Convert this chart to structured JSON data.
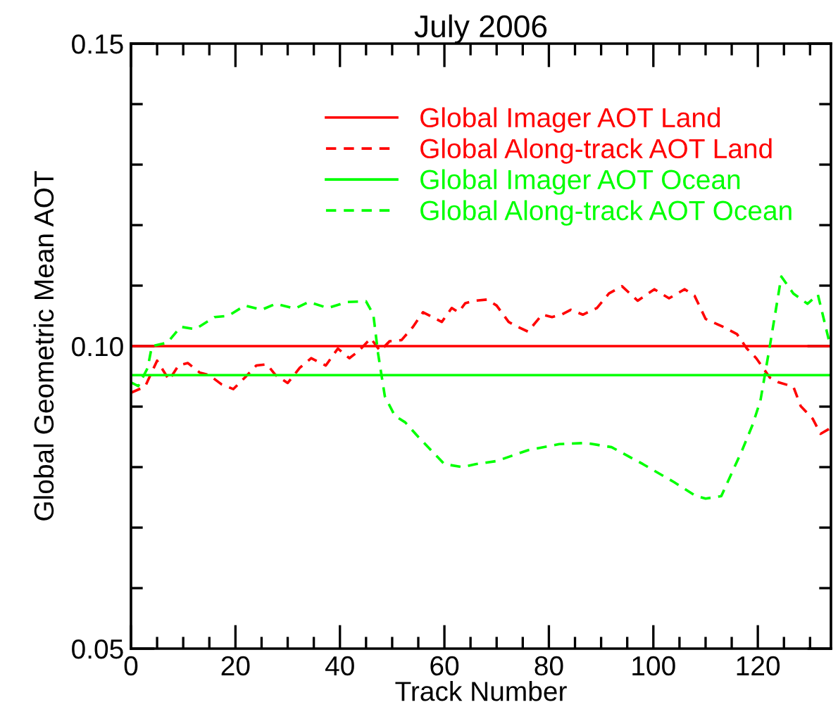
{
  "chart_data": {
    "type": "line",
    "title": "July 2006",
    "xlabel": "Track Number",
    "ylabel": "Global Geometric Mean AOT",
    "xlim": [
      0,
      134
    ],
    "xticks": [
      0,
      20,
      40,
      60,
      80,
      100,
      120
    ],
    "ylim": [
      0.05,
      0.15
    ],
    "yticks": [
      {
        "value": 0.05,
        "label": "0.05"
      },
      {
        "value": 0.1,
        "label": "0.10"
      },
      {
        "value": 0.15,
        "label": "0.15"
      }
    ],
    "grid": false,
    "legend": "top right",
    "series": [
      {
        "name": "Global Imager AOT Land",
        "color": "#ff0000",
        "line_style": "solid",
        "x": [
          0,
          134
        ],
        "values": [
          0.1,
          0.1
        ]
      },
      {
        "name": "Global Along-track AOT Land",
        "color": "#ff0000",
        "line_style": "dashed",
        "x": [
          0,
          2.7,
          5,
          7.3,
          9.1,
          10.9,
          13.2,
          15,
          17.3,
          19.6,
          21.8,
          24,
          26,
          27.7,
          30,
          32.3,
          34.5,
          37.3,
          39.6,
          41.8,
          43.6,
          45.9,
          47.7,
          49.5,
          51.8,
          54,
          55.9,
          57.7,
          59.5,
          61.4,
          62.7,
          64,
          65.9,
          68.2,
          70,
          72.3,
          74,
          76,
          78.7,
          80.6,
          82.4,
          84.2,
          86.5,
          89.2,
          91.5,
          94,
          97,
          100.2,
          103,
          106,
          107.9,
          110,
          113.3,
          116,
          117.9,
          119.7,
          122.3,
          124,
          126.8,
          128.2,
          130.5,
          132,
          134
        ],
        "values": [
          0.0923,
          0.0933,
          0.0976,
          0.0944,
          0.0968,
          0.0972,
          0.0956,
          0.0952,
          0.0937,
          0.0929,
          0.0948,
          0.0968,
          0.097,
          0.0952,
          0.0939,
          0.0964,
          0.098,
          0.0968,
          0.0996,
          0.098,
          0.0992,
          0.1013,
          0.0992,
          0.1008,
          0.101,
          0.1032,
          0.1056,
          0.1048,
          0.104,
          0.1063,
          0.1056,
          0.1071,
          0.1075,
          0.1077,
          0.1067,
          0.104,
          0.1032,
          0.1024,
          0.1052,
          0.1048,
          0.1052,
          0.106,
          0.1052,
          0.1063,
          0.1087,
          0.1099,
          0.1075,
          0.1094,
          0.1079,
          0.1094,
          0.1083,
          0.1045,
          0.1032,
          0.102,
          0.0996,
          0.098,
          0.0948,
          0.094,
          0.0933,
          0.0901,
          0.088,
          0.0855,
          0.0865
        ]
      },
      {
        "name": "Global Imager AOT Ocean",
        "color": "#00ff00",
        "line_style": "solid",
        "x": [
          0,
          134
        ],
        "values": [
          0.0952,
          0.0952
        ]
      },
      {
        "name": "Global Along-track AOT Ocean",
        "color": "#00ff00",
        "line_style": "dashed",
        "x": [
          0,
          1.4,
          3.2,
          4,
          7,
          9.5,
          12.3,
          16,
          18.6,
          21.8,
          25,
          27.7,
          31.4,
          34,
          37.7,
          41.4,
          45,
          46.4,
          47.3,
          48.6,
          50.5,
          52.5,
          55,
          60,
          63.5,
          66,
          70,
          76,
          82,
          87,
          92,
          98,
          104,
          108,
          110,
          113,
          117,
          119,
          120.5,
          122.3,
          124.5,
          126.8,
          129.5,
          131.5,
          133.6
        ],
        "values": [
          0.094,
          0.0934,
          0.0964,
          0.1,
          0.1006,
          0.1032,
          0.1028,
          0.1048,
          0.105,
          0.1067,
          0.106,
          0.107,
          0.1062,
          0.1073,
          0.1063,
          0.1073,
          0.1074,
          0.1052,
          0.0988,
          0.0917,
          0.0885,
          0.0874,
          0.085,
          0.0805,
          0.08,
          0.0805,
          0.081,
          0.0828,
          0.0838,
          0.084,
          0.0833,
          0.0805,
          0.0775,
          0.0753,
          0.0748,
          0.0752,
          0.0828,
          0.087,
          0.091,
          0.1,
          0.1115,
          0.1087,
          0.107,
          0.1085,
          0.101
        ]
      }
    ]
  }
}
